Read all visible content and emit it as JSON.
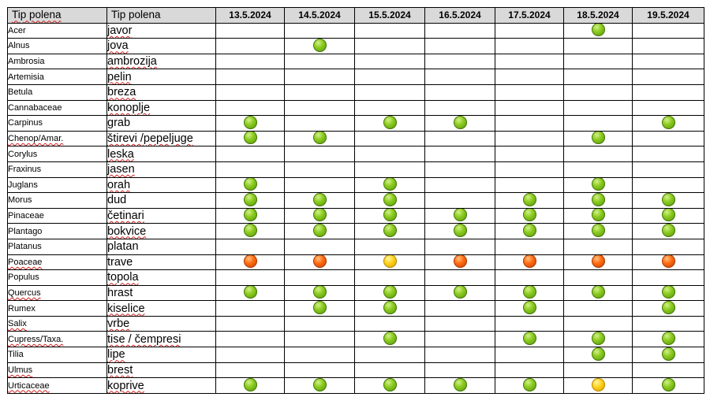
{
  "header": {
    "col_latin": "Tip polena",
    "col_local": "Tip polena",
    "dates": [
      "13.5.2024",
      "14.5.2024",
      "15.5.2024",
      "16.5.2024",
      "17.5.2024",
      "18.5.2024",
      "19.5.2024"
    ]
  },
  "legend_colors": {
    "green": "#7cbf1a",
    "orange": "#ff6a10",
    "yellow": "#ffd21a"
  },
  "rows": [
    {
      "latin": "Acer",
      "local": "javor",
      "levels": [
        null,
        null,
        null,
        null,
        null,
        "green",
        null
      ]
    },
    {
      "latin": "Alnus",
      "local": "jova",
      "levels": [
        null,
        "green",
        null,
        null,
        null,
        null,
        null
      ]
    },
    {
      "latin": "Ambrosia",
      "local": "ambrozija",
      "levels": [
        null,
        null,
        null,
        null,
        null,
        null,
        null
      ]
    },
    {
      "latin": "Artemisia",
      "local": "pelin",
      "levels": [
        null,
        null,
        null,
        null,
        null,
        null,
        null
      ]
    },
    {
      "latin": "Betula",
      "local": "breza",
      "levels": [
        null,
        null,
        null,
        null,
        null,
        null,
        null
      ]
    },
    {
      "latin": "Cannabaceae",
      "local": "konoplje",
      "levels": [
        null,
        null,
        null,
        null,
        null,
        null,
        null
      ]
    },
    {
      "latin": "Carpinus",
      "local": "grab",
      "levels": [
        "green",
        null,
        "green",
        "green",
        null,
        null,
        "green"
      ]
    },
    {
      "latin": "Chenop/Amar.",
      "local": "štirevi /pepeljuge",
      "levels": [
        "green",
        "green",
        null,
        null,
        null,
        "green",
        null
      ]
    },
    {
      "latin": "Corylus",
      "local": "leska",
      "levels": [
        null,
        null,
        null,
        null,
        null,
        null,
        null
      ]
    },
    {
      "latin": "Fraxinus",
      "local": "jasen",
      "levels": [
        null,
        null,
        null,
        null,
        null,
        null,
        null
      ]
    },
    {
      "latin": "Juglans",
      "local": "orah",
      "levels": [
        "green",
        null,
        "green",
        null,
        null,
        "green",
        null
      ]
    },
    {
      "latin": "Morus",
      "local": "dud",
      "levels": [
        "green",
        "green",
        "green",
        null,
        "green",
        "green",
        "green"
      ]
    },
    {
      "latin": "Pinaceae",
      "local": "četinari",
      "levels": [
        "green",
        "green",
        "green",
        "green",
        "green",
        "green",
        "green"
      ]
    },
    {
      "latin": "Plantago",
      "local": "bokvice",
      "levels": [
        "green",
        "green",
        "green",
        "green",
        "green",
        "green",
        "green"
      ]
    },
    {
      "latin": "Platanus",
      "local": "platan",
      "levels": [
        null,
        null,
        null,
        null,
        null,
        null,
        null
      ]
    },
    {
      "latin": "Poaceae",
      "local": "trave",
      "levels": [
        "orange",
        "orange",
        "yellow",
        "orange",
        "orange",
        "orange",
        "orange"
      ]
    },
    {
      "latin": "Populus",
      "local": "topola",
      "levels": [
        null,
        null,
        null,
        null,
        null,
        null,
        null
      ]
    },
    {
      "latin": "Quercus",
      "local": "hrast",
      "levels": [
        "green",
        "green",
        "green",
        "green",
        "green",
        "green",
        "green"
      ]
    },
    {
      "latin": "Rumex",
      "local": "kiselice",
      "levels": [
        null,
        "green",
        "green",
        null,
        "green",
        null,
        "green"
      ]
    },
    {
      "latin": "Salix",
      "local": "vrbe",
      "levels": [
        null,
        null,
        null,
        null,
        null,
        null,
        null
      ]
    },
    {
      "latin": "Cupress/Taxa.",
      "local": "tise / čempresi",
      "levels": [
        null,
        null,
        "green",
        null,
        "green",
        "green",
        "green"
      ]
    },
    {
      "latin": "Tilia",
      "local": "lipe",
      "levels": [
        null,
        null,
        null,
        null,
        null,
        "green",
        "green"
      ]
    },
    {
      "latin": "Ulmus",
      "local": "brest",
      "levels": [
        null,
        null,
        null,
        null,
        null,
        null,
        null
      ]
    },
    {
      "latin": "Urticaceae",
      "local": "koprive",
      "levels": [
        "green",
        "green",
        "green",
        "green",
        "green",
        "yellow",
        "green"
      ]
    }
  ]
}
